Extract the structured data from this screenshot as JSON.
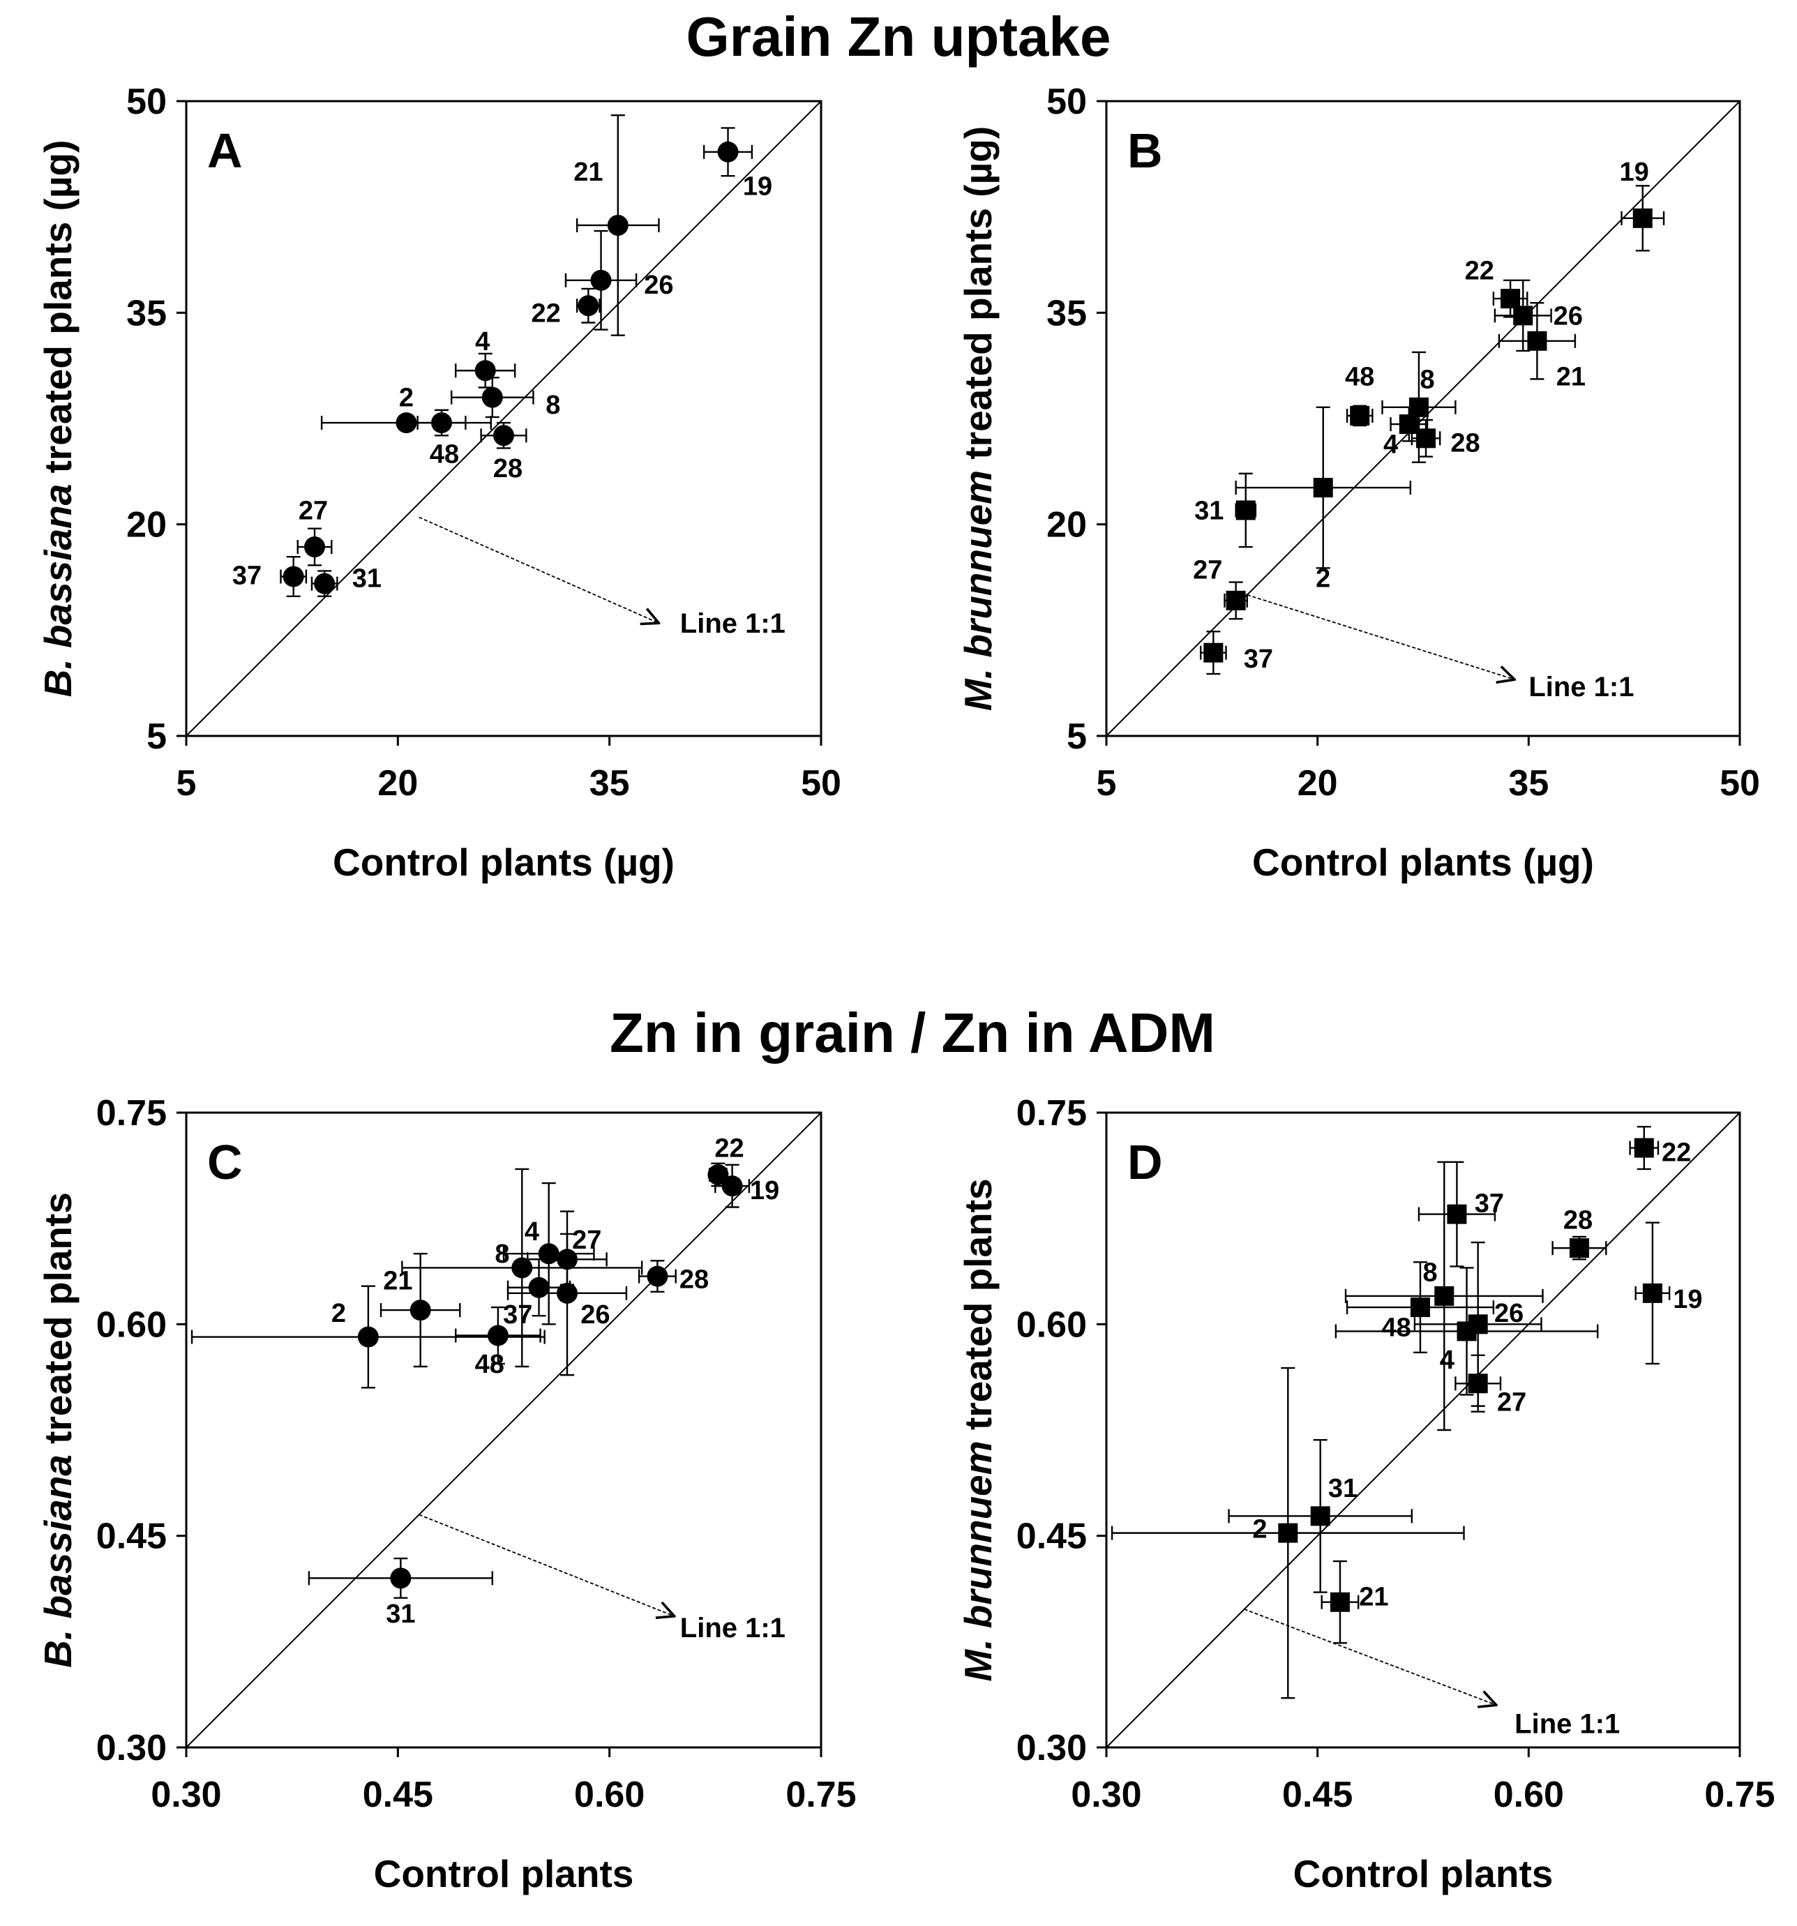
{
  "sections": [
    {
      "title": "Grain Zn uptake"
    },
    {
      "title": "Zn in grain / Zn in ADM"
    }
  ],
  "chart_data": [
    {
      "panel": "A",
      "section": 0,
      "type": "scatter",
      "marker": "circle",
      "xlabel": "Control plants (µg)",
      "ylabel_italic": "B. bassiana",
      "ylabel_rest": " treated plants (µg)",
      "xlim": [
        5,
        50
      ],
      "ylim": [
        5,
        50
      ],
      "xticks": [
        "5",
        "20",
        "35",
        "50"
      ],
      "yticks": [
        "5",
        "20",
        "35",
        "50"
      ],
      "tick_values": [
        5,
        20,
        35,
        50
      ],
      "identity_line": true,
      "line_annotation": {
        "text": "Line 1:1",
        "from": [
          21.5,
          20.5
        ],
        "to": [
          38.5,
          13.0
        ],
        "label_at": [
          40.0,
          13.0
        ]
      },
      "points": [
        {
          "id": "19",
          "x": 43.4,
          "y": 46.4,
          "xerr": 1.7,
          "yerr": 1.7,
          "label_at": [
            45.5,
            44.0
          ]
        },
        {
          "id": "21",
          "x": 35.6,
          "y": 41.2,
          "xerr": 2.9,
          "yerr": 7.8,
          "label_at": [
            33.5,
            45.0
          ]
        },
        {
          "id": "26",
          "x": 34.4,
          "y": 37.3,
          "xerr": 2.5,
          "yerr": 3.5,
          "label_at": [
            38.5,
            37.0
          ]
        },
        {
          "id": "22",
          "x": 33.5,
          "y": 35.5,
          "xerr": 0.8,
          "yerr": 1.2,
          "label_at": [
            30.5,
            35.0
          ]
        },
        {
          "id": "4",
          "x": 26.2,
          "y": 30.9,
          "xerr": 2.1,
          "yerr": 1.2,
          "label_at": [
            26.0,
            33.0
          ]
        },
        {
          "id": "8",
          "x": 26.7,
          "y": 29.0,
          "xerr": 2.9,
          "yerr": 1.4,
          "label_at": [
            31.0,
            28.5
          ]
        },
        {
          "id": "2",
          "x": 20.6,
          "y": 27.2,
          "xerr": 6.0,
          "yerr": 0.5,
          "label_at": [
            20.6,
            29.0
          ]
        },
        {
          "id": "48",
          "x": 23.1,
          "y": 27.2,
          "xerr": 1.7,
          "yerr": 0.9,
          "label_at": [
            23.3,
            25.0
          ]
        },
        {
          "id": "28",
          "x": 27.5,
          "y": 26.3,
          "xerr": 1.6,
          "yerr": 0.9,
          "label_at": [
            27.8,
            24.0
          ]
        },
        {
          "id": "27",
          "x": 14.1,
          "y": 18.4,
          "xerr": 1.2,
          "yerr": 1.3,
          "label_at": [
            14.0,
            21.0
          ]
        },
        {
          "id": "37",
          "x": 12.6,
          "y": 16.3,
          "xerr": 0.9,
          "yerr": 1.4,
          "label_at": [
            9.3,
            16.4
          ]
        },
        {
          "id": "31",
          "x": 14.8,
          "y": 15.8,
          "xerr": 0.9,
          "yerr": 0.9,
          "label_at": [
            17.8,
            16.2
          ]
        }
      ]
    },
    {
      "panel": "B",
      "section": 0,
      "type": "scatter",
      "marker": "square",
      "xlabel": "Control plants (µg)",
      "ylabel_italic": "M. brunnuem",
      "ylabel_rest": " treated plants (µg)",
      "xlim": [
        5,
        50
      ],
      "ylim": [
        5,
        50
      ],
      "xticks": [
        "5",
        "20",
        "35",
        "50"
      ],
      "yticks": [
        "5",
        "20",
        "35",
        "50"
      ],
      "tick_values": [
        5,
        20,
        35,
        50
      ],
      "identity_line": true,
      "line_annotation": {
        "text": "Line 1:1",
        "from": [
          15.0,
          15.0
        ],
        "to": [
          34.0,
          9.0
        ],
        "label_at": [
          35.0,
          8.5
        ]
      },
      "points": [
        {
          "id": "19",
          "x": 43.1,
          "y": 41.7,
          "xerr": 1.5,
          "yerr": 2.3,
          "label_at": [
            42.5,
            45.0
          ]
        },
        {
          "id": "22",
          "x": 33.7,
          "y": 36.0,
          "xerr": 1.2,
          "yerr": 1.3,
          "label_at": [
            31.5,
            38.0
          ]
        },
        {
          "id": "26",
          "x": 34.6,
          "y": 34.8,
          "xerr": 2.0,
          "yerr": 2.5,
          "label_at": [
            37.8,
            34.8
          ]
        },
        {
          "id": "21",
          "x": 35.6,
          "y": 33.0,
          "xerr": 2.7,
          "yerr": 2.7,
          "label_at": [
            38.0,
            30.5
          ]
        },
        {
          "id": "48",
          "x": 23.0,
          "y": 27.7,
          "xerr": 0.9,
          "yerr": 0.7,
          "label_at": [
            23.0,
            30.5
          ]
        },
        {
          "id": "8",
          "x": 27.2,
          "y": 28.3,
          "xerr": 2.6,
          "yerr": 3.9,
          "label_at": [
            27.8,
            30.3
          ]
        },
        {
          "id": "4",
          "x": 26.5,
          "y": 27.1,
          "xerr": 1.3,
          "yerr": 1.2,
          "label_at": [
            25.2,
            25.7
          ]
        },
        {
          "id": "28",
          "x": 27.7,
          "y": 26.1,
          "xerr": 1.0,
          "yerr": 1.3,
          "label_at": [
            30.5,
            25.8
          ]
        },
        {
          "id": "2",
          "x": 20.4,
          "y": 22.6,
          "xerr": 6.2,
          "yerr": 5.7,
          "label_at": [
            20.4,
            16.2
          ]
        },
        {
          "id": "31",
          "x": 14.9,
          "y": 21.0,
          "xerr": 0.7,
          "yerr": 2.6,
          "label_at": [
            12.3,
            21.0
          ]
        },
        {
          "id": "27",
          "x": 14.2,
          "y": 14.6,
          "xerr": 0.8,
          "yerr": 1.3,
          "label_at": [
            12.2,
            16.8
          ]
        },
        {
          "id": "37",
          "x": 12.6,
          "y": 10.9,
          "xerr": 0.9,
          "yerr": 1.5,
          "label_at": [
            15.8,
            10.5
          ]
        }
      ]
    },
    {
      "panel": "C",
      "section": 1,
      "type": "scatter",
      "marker": "circle",
      "xlabel": "Control plants",
      "ylabel_italic": "B. bassiana",
      "ylabel_rest": " treated plants",
      "xlim": [
        0.3,
        0.75
      ],
      "ylim": [
        0.3,
        0.75
      ],
      "xticks": [
        "0.30",
        "0.45",
        "0.60",
        "0.75"
      ],
      "yticks": [
        "0.30",
        "0.45",
        "0.60",
        "0.75"
      ],
      "tick_values": [
        0.3,
        0.45,
        0.6,
        0.75
      ],
      "identity_line": true,
      "line_annotation": {
        "text": "Line 1:1",
        "from": [
          0.465,
          0.465
        ],
        "to": [
          0.646,
          0.393
        ],
        "label_at": [
          0.65,
          0.385
        ]
      },
      "points": [
        {
          "id": "22",
          "x": 0.677,
          "y": 0.706,
          "xerr": 0.006,
          "yerr": 0.008,
          "label_at": [
            0.685,
            0.725
          ]
        },
        {
          "id": "19",
          "x": 0.687,
          "y": 0.698,
          "xerr": 0.012,
          "yerr": 0.015,
          "label_at": [
            0.71,
            0.695
          ]
        },
        {
          "id": "28",
          "x": 0.634,
          "y": 0.634,
          "xerr": 0.013,
          "yerr": 0.011,
          "label_at": [
            0.66,
            0.632
          ]
        },
        {
          "id": "4",
          "x": 0.557,
          "y": 0.65,
          "xerr": 0.032,
          "yerr": 0.05,
          "label_at": [
            0.545,
            0.666
          ]
        },
        {
          "id": "27",
          "x": 0.57,
          "y": 0.646,
          "xerr": 0.028,
          "yerr": 0.018,
          "label_at": [
            0.584,
            0.66
          ]
        },
        {
          "id": "8",
          "x": 0.538,
          "y": 0.64,
          "xerr": 0.085,
          "yerr": 0.07,
          "label_at": [
            0.524,
            0.65
          ]
        },
        {
          "id": "37",
          "x": 0.55,
          "y": 0.626,
          "xerr": 0.022,
          "yerr": 0.02,
          "label_at": [
            0.535,
            0.607
          ]
        },
        {
          "id": "26",
          "x": 0.57,
          "y": 0.622,
          "xerr": 0.042,
          "yerr": 0.058,
          "label_at": [
            0.59,
            0.607
          ]
        },
        {
          "id": "21",
          "x": 0.466,
          "y": 0.61,
          "xerr": 0.028,
          "yerr": 0.04,
          "label_at": [
            0.45,
            0.631
          ]
        },
        {
          "id": "2",
          "x": 0.429,
          "y": 0.591,
          "xerr": 0.125,
          "yerr": 0.036,
          "label_at": [
            0.408,
            0.608
          ]
        },
        {
          "id": "48",
          "x": 0.521,
          "y": 0.592,
          "xerr": 0.03,
          "yerr": 0.02,
          "label_at": [
            0.515,
            0.572
          ]
        },
        {
          "id": "31",
          "x": 0.452,
          "y": 0.42,
          "xerr": 0.065,
          "yerr": 0.014,
          "label_at": [
            0.452,
            0.395
          ]
        }
      ]
    },
    {
      "panel": "D",
      "section": 1,
      "type": "scatter",
      "marker": "square",
      "xlabel": "Control plants",
      "ylabel_italic": "M. brunnuem",
      "ylabel_rest": " treated plants",
      "xlim": [
        0.3,
        0.75
      ],
      "ylim": [
        0.3,
        0.75
      ],
      "xticks": [
        "0.30",
        "0.45",
        "0.60",
        "0.75"
      ],
      "yticks": [
        "0.30",
        "0.45",
        "0.60",
        "0.75"
      ],
      "tick_values": [
        0.3,
        0.45,
        0.6,
        0.75
      ],
      "identity_line": true,
      "line_annotation": {
        "text": "Line 1:1",
        "from": [
          0.398,
          0.398
        ],
        "to": [
          0.577,
          0.33
        ],
        "label_at": [
          0.59,
          0.317
        ]
      },
      "points": [
        {
          "id": "22",
          "x": 0.682,
          "y": 0.725,
          "xerr": 0.01,
          "yerr": 0.015,
          "label_at": [
            0.705,
            0.722
          ]
        },
        {
          "id": "19",
          "x": 0.688,
          "y": 0.622,
          "xerr": 0.012,
          "yerr": 0.05,
          "label_at": [
            0.713,
            0.618
          ]
        },
        {
          "id": "28",
          "x": 0.636,
          "y": 0.654,
          "xerr": 0.019,
          "yerr": 0.008,
          "label_at": [
            0.635,
            0.674
          ]
        },
        {
          "id": "37",
          "x": 0.549,
          "y": 0.678,
          "xerr": 0.027,
          "yerr": 0.037,
          "label_at": [
            0.572,
            0.686
          ]
        },
        {
          "id": "8",
          "x": 0.54,
          "y": 0.62,
          "xerr": 0.07,
          "yerr": 0.095,
          "label_at": [
            0.53,
            0.637
          ]
        },
        {
          "id": "48",
          "x": 0.523,
          "y": 0.612,
          "xerr": 0.052,
          "yerr": 0.032,
          "label_at": [
            0.506,
            0.598
          ]
        },
        {
          "id": "26",
          "x": 0.564,
          "y": 0.6,
          "xerr": 0.045,
          "yerr": 0.058,
          "label_at": [
            0.586,
            0.608
          ]
        },
        {
          "id": "4",
          "x": 0.556,
          "y": 0.595,
          "xerr": 0.093,
          "yerr": 0.045,
          "label_at": [
            0.542,
            0.575
          ]
        },
        {
          "id": "27",
          "x": 0.564,
          "y": 0.558,
          "xerr": 0.016,
          "yerr": 0.02,
          "label_at": [
            0.588,
            0.545
          ]
        },
        {
          "id": "31",
          "x": 0.452,
          "y": 0.464,
          "xerr": 0.065,
          "yerr": 0.054,
          "label_at": [
            0.468,
            0.484
          ]
        },
        {
          "id": "2",
          "x": 0.429,
          "y": 0.452,
          "xerr": 0.125,
          "yerr": 0.117,
          "label_at": [
            0.409,
            0.455
          ]
        },
        {
          "id": "21",
          "x": 0.466,
          "y": 0.403,
          "xerr": 0.013,
          "yerr": 0.029,
          "label_at": [
            0.49,
            0.407
          ]
        }
      ]
    }
  ]
}
